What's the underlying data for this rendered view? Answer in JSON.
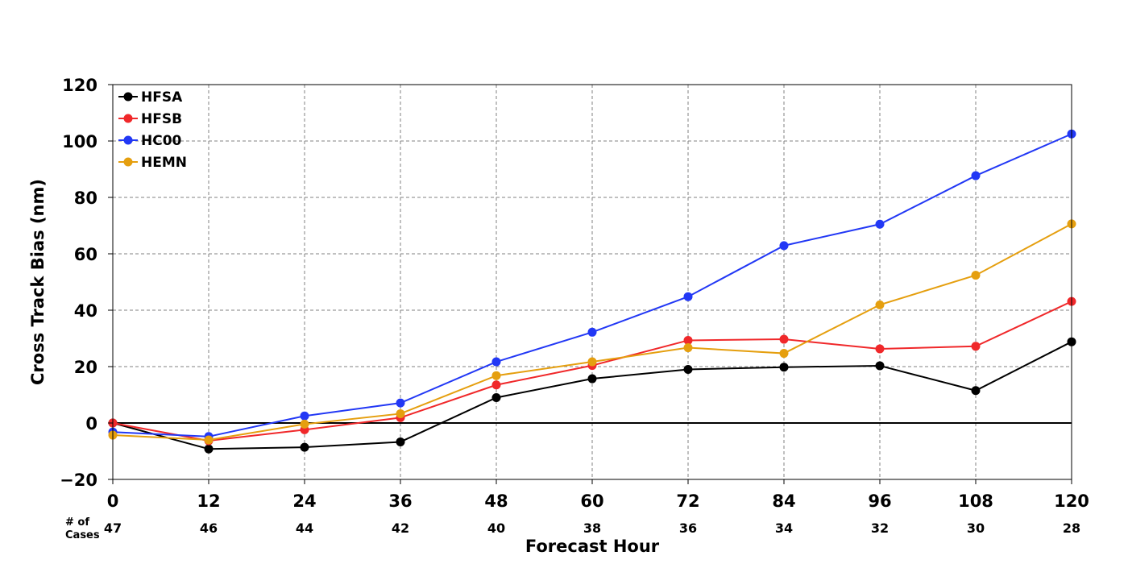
{
  "chart_data": {
    "type": "line",
    "xlabel": "Forecast Hour",
    "ylabel": "Cross Track Bias (nm)",
    "x": [
      0,
      12,
      24,
      36,
      48,
      60,
      72,
      84,
      96,
      108,
      120
    ],
    "xlim": [
      0,
      120
    ],
    "ylim": [
      -20,
      120
    ],
    "yticks": [
      -20,
      0,
      20,
      40,
      60,
      80,
      100,
      120
    ],
    "ytick_labels": [
      "−20",
      "0",
      "20",
      "40",
      "60",
      "80",
      "100",
      "120"
    ],
    "grid": true,
    "zero_line": true,
    "legend_position": "top-left",
    "cases_title_line1": "# of",
    "cases_title_line2": "Cases",
    "cases": [
      47,
      46,
      44,
      42,
      40,
      38,
      36,
      34,
      32,
      30,
      28
    ],
    "series": [
      {
        "name": "HFSA",
        "color": "#000000",
        "values": [
          0,
          -9.2,
          -8.6,
          -6.7,
          9.0,
          15.7,
          19.0,
          19.8,
          20.3,
          11.5,
          28.8
        ]
      },
      {
        "name": "HFSB",
        "color": "#f0282a",
        "values": [
          0,
          -6.3,
          -2.4,
          1.9,
          13.5,
          20.4,
          29.3,
          29.7,
          26.3,
          27.2,
          43.1
        ]
      },
      {
        "name": "HC00",
        "color": "#2238f5",
        "values": [
          -3.2,
          -4.8,
          2.5,
          7.1,
          21.7,
          32.2,
          44.8,
          62.9,
          70.5,
          87.7,
          102.5
        ]
      },
      {
        "name": "HEMN",
        "color": "#e59f0f",
        "values": [
          -4.3,
          -6.0,
          -0.4,
          3.3,
          16.8,
          21.7,
          26.7,
          24.7,
          41.9,
          52.4,
          70.6
        ]
      }
    ]
  }
}
